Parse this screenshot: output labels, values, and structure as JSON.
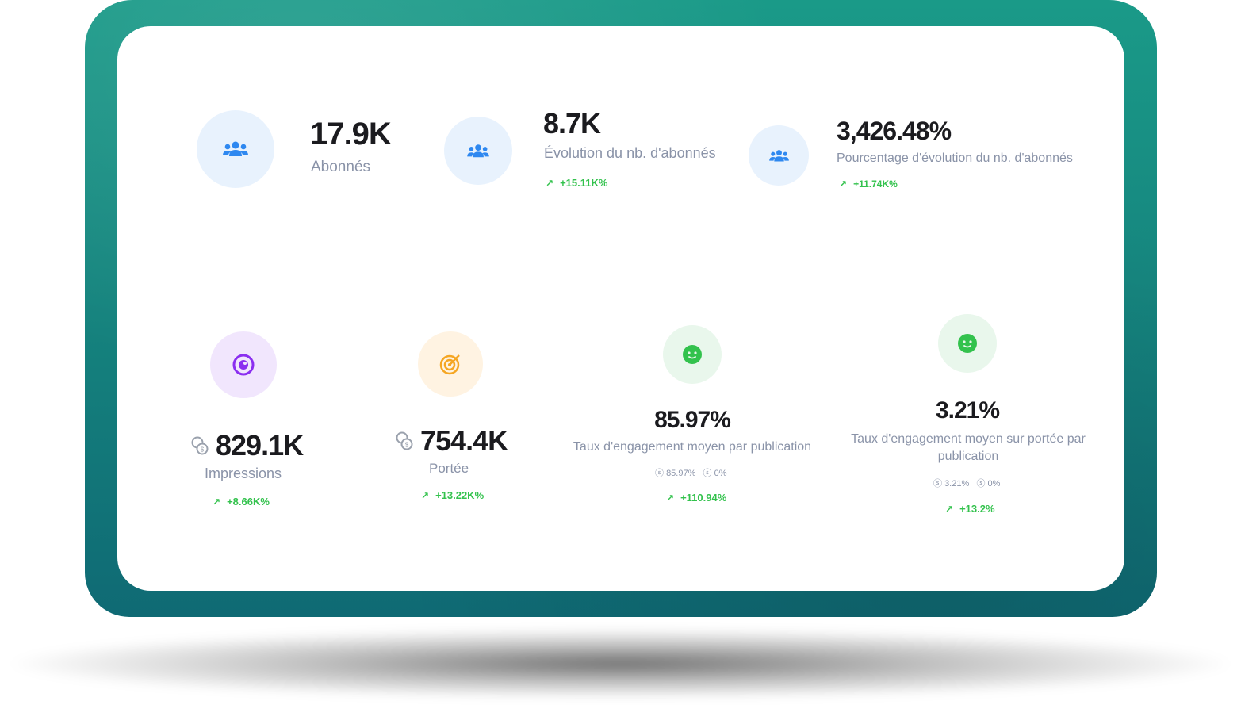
{
  "metrics_top": [
    {
      "value": "17.9K",
      "label": "Abonnés",
      "icon": "users-icon"
    },
    {
      "value": "8.7K",
      "label": "Évolution du nb. d'abonnés",
      "trend": "+15.11K%",
      "icon": "users-icon"
    },
    {
      "value": "3,426.48%",
      "label": "Pourcentage d'évolution du nb. d'abonnés",
      "trend": "+11.74K%",
      "icon": "users-icon"
    }
  ],
  "metrics_bottom": [
    {
      "value": "829.1K",
      "label": "Impressions",
      "trend": "+8.66K%",
      "icon": "eye-icon"
    },
    {
      "value": "754.4K",
      "label": "Portée",
      "trend": "+13.22K%",
      "icon": "target-icon"
    },
    {
      "value": "85.97%",
      "label": "Taux d'engagement moyen par publication",
      "sub_a": "85.97%",
      "sub_b": "0%",
      "trend": "+110.94%",
      "icon": "smiley-icon"
    },
    {
      "value": "3.21%",
      "label_line1": "Taux d'engagement moyen sur portée par",
      "label_line2": "publication",
      "sub_a": "3.21%",
      "sub_b": "0%",
      "trend": "+13.2%",
      "icon": "smiley-icon"
    }
  ],
  "colors": {
    "frame": "#16867f",
    "card": "#ffffff",
    "blue_icon": "#2e88f0",
    "purple_icon": "#8b2ff0",
    "orange_icon": "#f5a623",
    "green_icon": "#33c24d",
    "trend_up": "#33c24d"
  }
}
